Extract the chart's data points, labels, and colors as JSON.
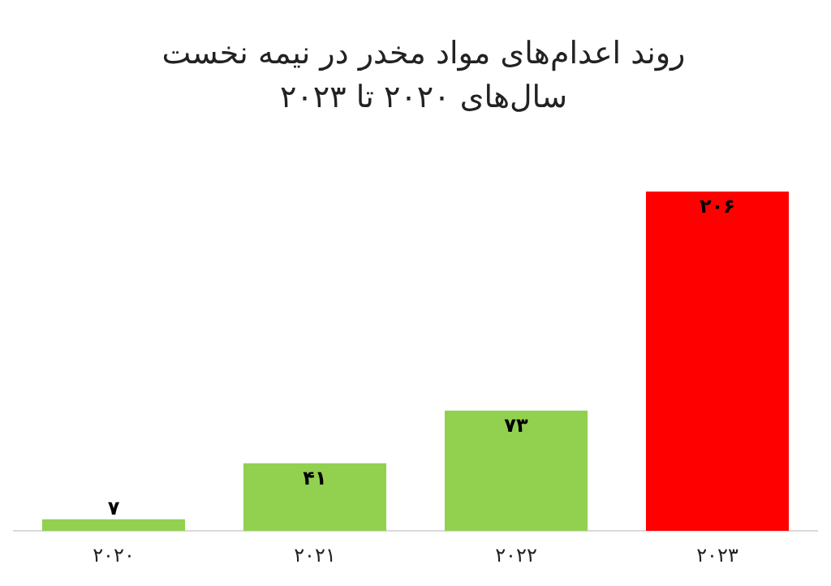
{
  "chart_data": {
    "type": "bar",
    "title": "روند اعدام‌های مواد مخدر در نیمه نخست سال‌های ۲۰۲۰ تا ۲۰۲۳",
    "categories": [
      "۲۰۲۰",
      "۲۰۲۱",
      "۲۰۲۲",
      "۲۰۲۳"
    ],
    "values": [
      7,
      41,
      73,
      206
    ],
    "value_labels": [
      "۷",
      "۴۱",
      "۷۳",
      "۲۰۶"
    ],
    "colors": [
      "#92d050",
      "#92d050",
      "#92d050",
      "#ff0000"
    ]
  }
}
